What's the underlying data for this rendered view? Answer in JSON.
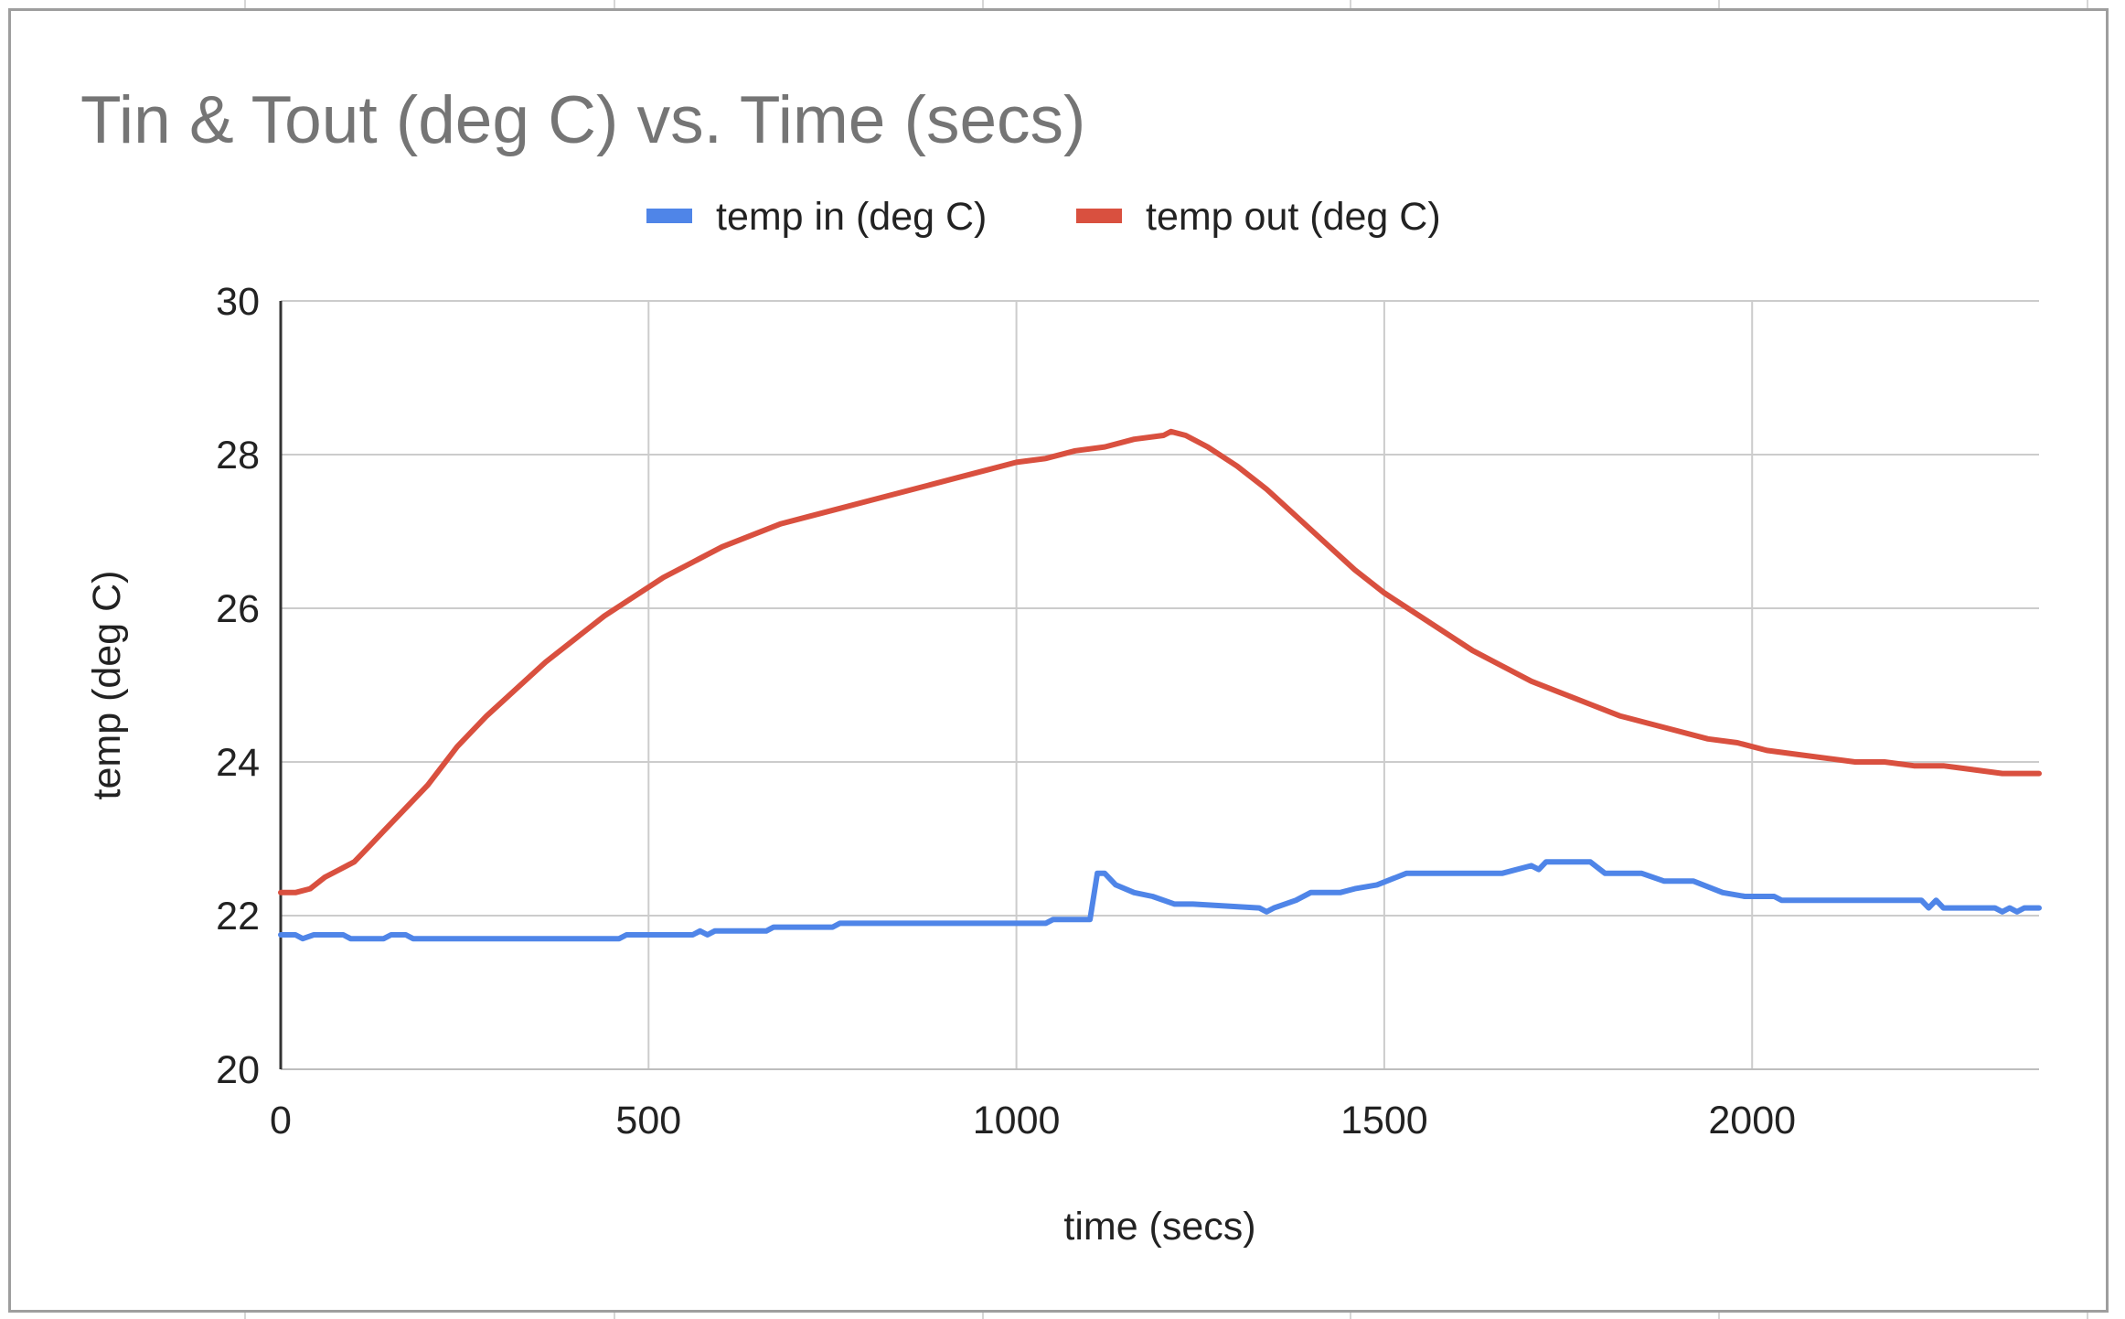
{
  "chart_data": {
    "type": "line",
    "title": "Tin & Tout (deg C) vs. Time (secs)",
    "xlabel": "time (secs)",
    "ylabel": "temp (deg C)",
    "xlim": [
      0,
      2390
    ],
    "ylim": [
      20,
      30
    ],
    "xticks": [
      0,
      500,
      1000,
      1500,
      2000
    ],
    "yticks": [
      20,
      22,
      24,
      26,
      28,
      30
    ],
    "grid": true,
    "legend_position": "top",
    "series": [
      {
        "name": "temp in (deg C)",
        "color": "#4f85e8",
        "points": [
          [
            0,
            21.75
          ],
          [
            20,
            21.75
          ],
          [
            30,
            21.7
          ],
          [
            45,
            21.75
          ],
          [
            85,
            21.75
          ],
          [
            95,
            21.7
          ],
          [
            140,
            21.7
          ],
          [
            150,
            21.75
          ],
          [
            170,
            21.75
          ],
          [
            180,
            21.7
          ],
          [
            460,
            21.7
          ],
          [
            470,
            21.75
          ],
          [
            560,
            21.75
          ],
          [
            570,
            21.8
          ],
          [
            580,
            21.75
          ],
          [
            590,
            21.8
          ],
          [
            660,
            21.8
          ],
          [
            670,
            21.85
          ],
          [
            750,
            21.85
          ],
          [
            760,
            21.9
          ],
          [
            1040,
            21.9
          ],
          [
            1050,
            21.95
          ],
          [
            1100,
            21.95
          ],
          [
            1110,
            22.55
          ],
          [
            1120,
            22.55
          ],
          [
            1135,
            22.4
          ],
          [
            1160,
            22.3
          ],
          [
            1185,
            22.25
          ],
          [
            1215,
            22.15
          ],
          [
            1240,
            22.15
          ],
          [
            1330,
            22.1
          ],
          [
            1340,
            22.05
          ],
          [
            1350,
            22.1
          ],
          [
            1380,
            22.2
          ],
          [
            1400,
            22.3
          ],
          [
            1440,
            22.3
          ],
          [
            1460,
            22.35
          ],
          [
            1490,
            22.4
          ],
          [
            1530,
            22.55
          ],
          [
            1660,
            22.55
          ],
          [
            1700,
            22.65
          ],
          [
            1710,
            22.6
          ],
          [
            1720,
            22.7
          ],
          [
            1780,
            22.7
          ],
          [
            1800,
            22.55
          ],
          [
            1850,
            22.55
          ],
          [
            1880,
            22.45
          ],
          [
            1920,
            22.45
          ],
          [
            1960,
            22.3
          ],
          [
            1990,
            22.25
          ],
          [
            2030,
            22.25
          ],
          [
            2040,
            22.2
          ],
          [
            2230,
            22.2
          ],
          [
            2240,
            22.1
          ],
          [
            2250,
            22.2
          ],
          [
            2260,
            22.1
          ],
          [
            2330,
            22.1
          ],
          [
            2340,
            22.05
          ],
          [
            2350,
            22.1
          ],
          [
            2360,
            22.05
          ],
          [
            2370,
            22.1
          ],
          [
            2390,
            22.1
          ]
        ]
      },
      {
        "name": "temp out (deg C)",
        "color": "#d9503f",
        "points": [
          [
            0,
            22.3
          ],
          [
            20,
            22.3
          ],
          [
            40,
            22.35
          ],
          [
            60,
            22.5
          ],
          [
            80,
            22.6
          ],
          [
            100,
            22.7
          ],
          [
            120,
            22.9
          ],
          [
            140,
            23.1
          ],
          [
            160,
            23.3
          ],
          [
            200,
            23.7
          ],
          [
            240,
            24.2
          ],
          [
            280,
            24.6
          ],
          [
            320,
            24.95
          ],
          [
            360,
            25.3
          ],
          [
            400,
            25.6
          ],
          [
            440,
            25.9
          ],
          [
            480,
            26.15
          ],
          [
            520,
            26.4
          ],
          [
            560,
            26.6
          ],
          [
            600,
            26.8
          ],
          [
            640,
            26.95
          ],
          [
            680,
            27.1
          ],
          [
            720,
            27.2
          ],
          [
            760,
            27.3
          ],
          [
            800,
            27.4
          ],
          [
            840,
            27.5
          ],
          [
            880,
            27.6
          ],
          [
            920,
            27.7
          ],
          [
            960,
            27.8
          ],
          [
            1000,
            27.9
          ],
          [
            1040,
            27.95
          ],
          [
            1080,
            28.05
          ],
          [
            1120,
            28.1
          ],
          [
            1160,
            28.2
          ],
          [
            1200,
            28.25
          ],
          [
            1210,
            28.3
          ],
          [
            1230,
            28.25
          ],
          [
            1260,
            28.1
          ],
          [
            1300,
            27.85
          ],
          [
            1340,
            27.55
          ],
          [
            1380,
            27.2
          ],
          [
            1420,
            26.85
          ],
          [
            1460,
            26.5
          ],
          [
            1500,
            26.2
          ],
          [
            1540,
            25.95
          ],
          [
            1580,
            25.7
          ],
          [
            1620,
            25.45
          ],
          [
            1660,
            25.25
          ],
          [
            1700,
            25.05
          ],
          [
            1740,
            24.9
          ],
          [
            1780,
            24.75
          ],
          [
            1820,
            24.6
          ],
          [
            1860,
            24.5
          ],
          [
            1900,
            24.4
          ],
          [
            1940,
            24.3
          ],
          [
            1980,
            24.25
          ],
          [
            2020,
            24.15
          ],
          [
            2060,
            24.1
          ],
          [
            2100,
            24.05
          ],
          [
            2140,
            24.0
          ],
          [
            2180,
            24.0
          ],
          [
            2220,
            23.95
          ],
          [
            2260,
            23.95
          ],
          [
            2300,
            23.9
          ],
          [
            2340,
            23.85
          ],
          [
            2390,
            23.85
          ]
        ]
      }
    ]
  }
}
